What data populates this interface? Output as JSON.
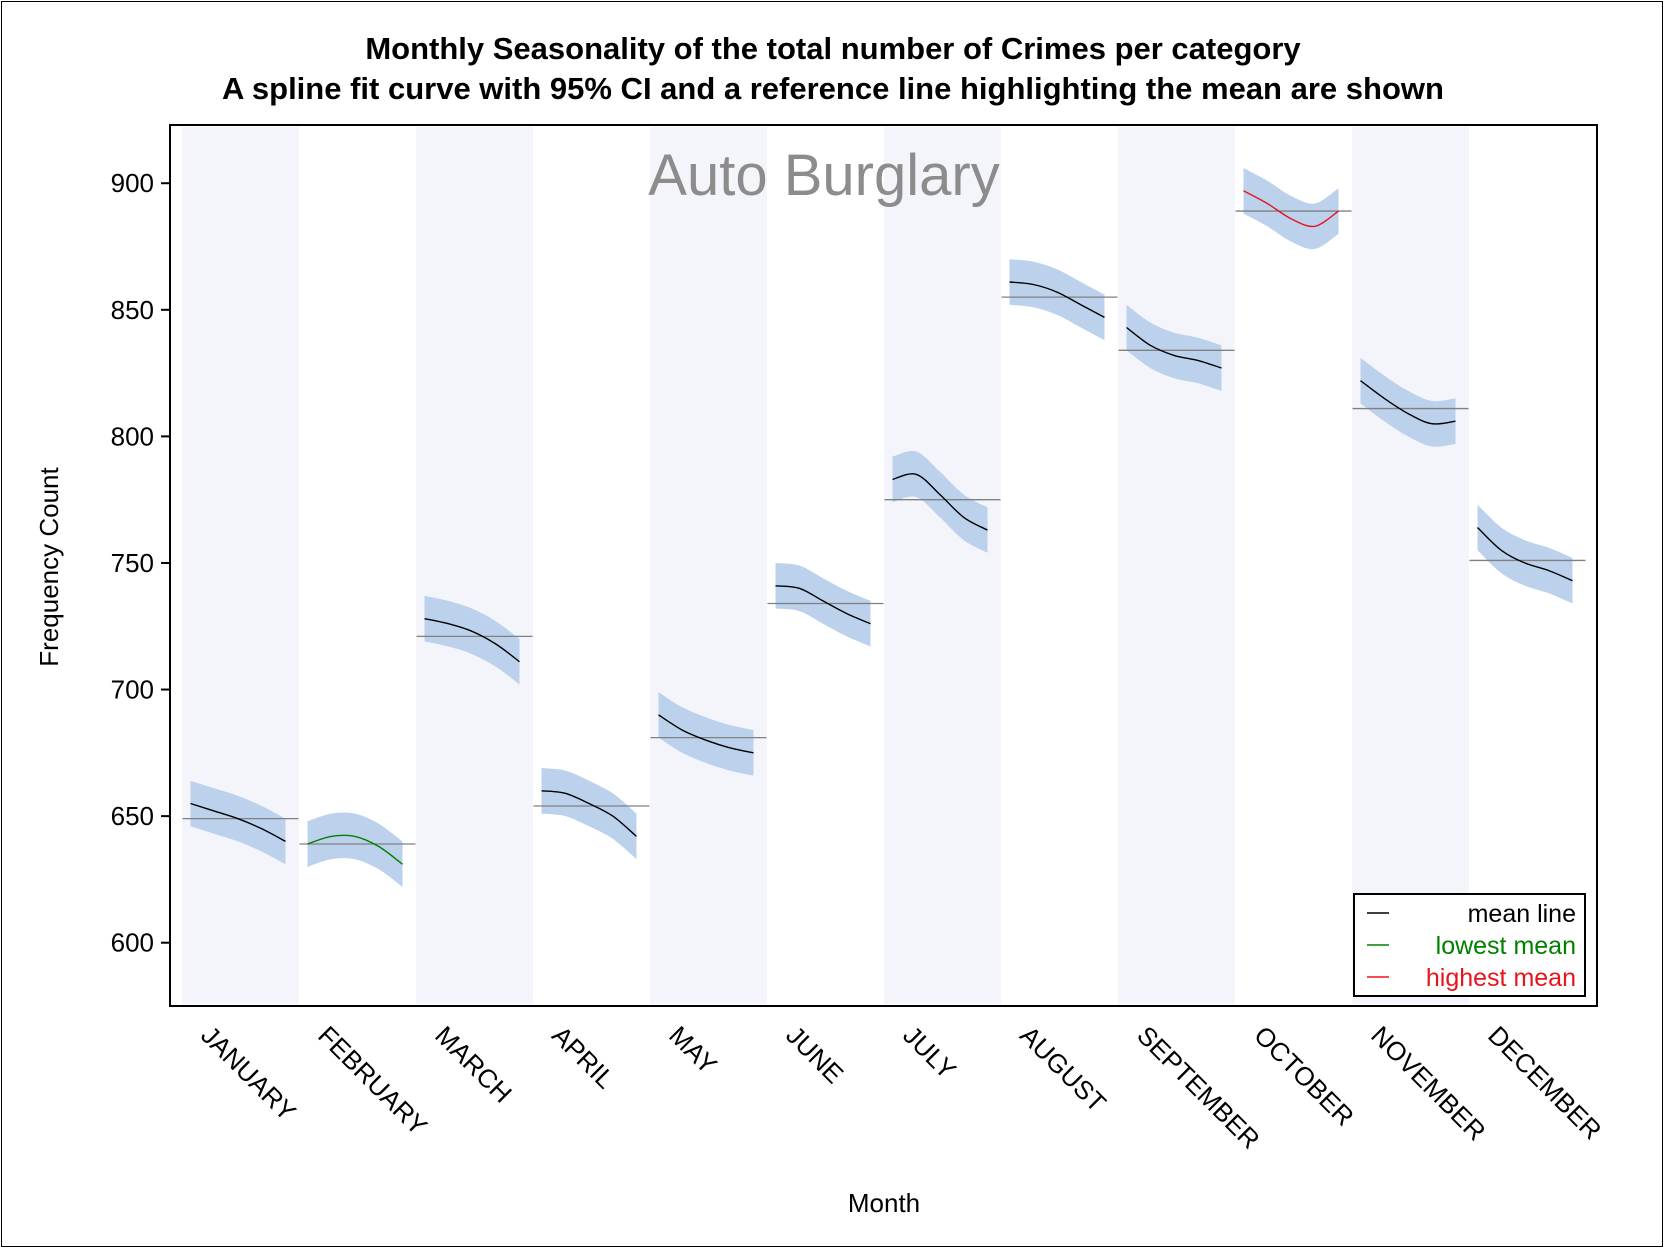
{
  "chart_data": {
    "type": "line",
    "title": "Monthly Seasonality of the total number of Crimes per category",
    "subtitle": "A spline fit curve with 95% CI and a reference line highlighting the mean are shown",
    "panel_label": "Auto Burglary",
    "xlabel": "Month",
    "ylabel": "Frequency Count",
    "ylim": [
      575,
      923
    ],
    "yticks": [
      600,
      650,
      700,
      750,
      800,
      850,
      900
    ],
    "categories": [
      "JANUARY",
      "FEBRUARY",
      "MARCH",
      "APRIL",
      "MAY",
      "JUNE",
      "JULY",
      "AUGUST",
      "SEPTEMBER",
      "OCTOBER",
      "NOVEMBER",
      "DECEMBER"
    ],
    "band_shading": "alternating (odd months shaded)",
    "ci_half_width": 9,
    "colors": {
      "mean": "#000000",
      "lowest": "#008000",
      "highest": "#e8141c",
      "ci_band": "#bcd1ec",
      "alt_band": "#f3f5fa",
      "reference_line": "#808080",
      "panel_label": "#8c8c8c"
    },
    "series": [
      {
        "category": "JANUARY",
        "mean": 649,
        "status": "mean",
        "curve": [
          655,
          652,
          649,
          645,
          640
        ]
      },
      {
        "category": "FEBRUARY",
        "mean": 639,
        "status": "lowest",
        "curve": [
          639,
          642,
          642,
          638,
          631
        ]
      },
      {
        "category": "MARCH",
        "mean": 721,
        "status": "mean",
        "curve": [
          728,
          726,
          723,
          718,
          711
        ]
      },
      {
        "category": "APRIL",
        "mean": 654,
        "status": "mean",
        "curve": [
          660,
          659,
          655,
          650,
          642
        ]
      },
      {
        "category": "MAY",
        "mean": 681,
        "status": "mean",
        "curve": [
          690,
          684,
          680,
          677,
          675
        ]
      },
      {
        "category": "JUNE",
        "mean": 734,
        "status": "mean",
        "curve": [
          741,
          740,
          735,
          730,
          726
        ]
      },
      {
        "category": "JULY",
        "mean": 775,
        "status": "mean",
        "curve": [
          783,
          785,
          777,
          768,
          763
        ]
      },
      {
        "category": "AUGUST",
        "mean": 855,
        "status": "mean",
        "curve": [
          861,
          860,
          857,
          852,
          847
        ]
      },
      {
        "category": "SEPTEMBER",
        "mean": 834,
        "status": "mean",
        "curve": [
          843,
          836,
          832,
          830,
          827
        ]
      },
      {
        "category": "OCTOBER",
        "mean": 889,
        "status": "highest",
        "curve": [
          897,
          892,
          886,
          883,
          889
        ]
      },
      {
        "category": "NOVEMBER",
        "mean": 811,
        "status": "mean",
        "curve": [
          822,
          815,
          809,
          805,
          806
        ]
      },
      {
        "category": "DECEMBER",
        "mean": 751,
        "status": "mean",
        "curve": [
          764,
          755,
          750,
          747,
          743
        ]
      }
    ],
    "legend": {
      "position": "bottom-right",
      "items": [
        {
          "label": "mean line",
          "status": "mean"
        },
        {
          "label": "lowest mean",
          "status": "lowest"
        },
        {
          "label": "highest mean",
          "status": "highest"
        }
      ]
    }
  }
}
